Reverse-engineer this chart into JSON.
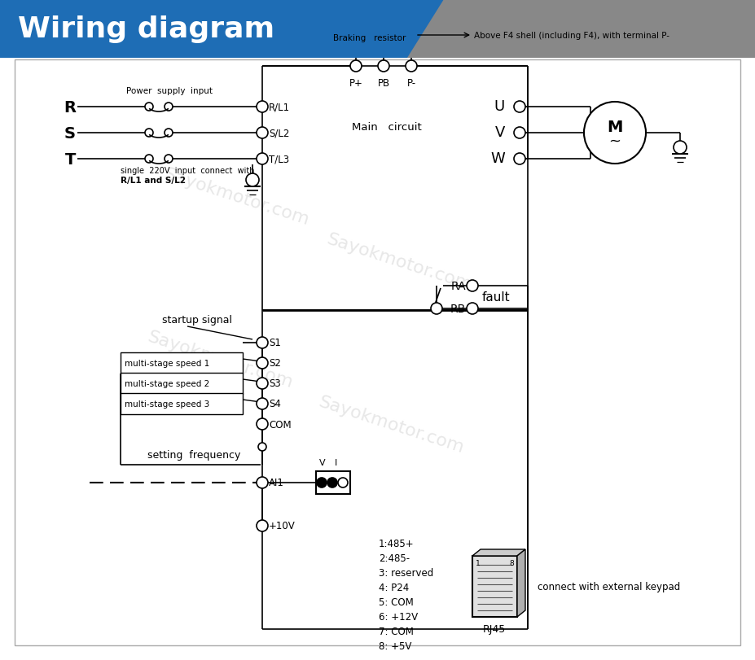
{
  "title": "Wiring diagram",
  "title_bg_color": "#1e6db5",
  "title_text_color": "#ffffff",
  "bg_color": "#ffffff",
  "gray_color": "#888888",
  "watermark": "Sayokmotor.com",
  "watermark_color": "#d0d0d0",
  "labels": {
    "R": "R",
    "S": "S",
    "T": "T",
    "RL1": "R/L1",
    "SL2": "S/L2",
    "TL3": "T/L3",
    "Pplus": "P+",
    "PB": "PB",
    "Pminus": "P-",
    "U": "U",
    "V": "V",
    "W": "W",
    "S1": "S1",
    "S2": "S2",
    "S3": "S3",
    "S4": "S4",
    "COM": "COM",
    "AI1": "AI1",
    "plus10V": "+10V",
    "RA": "RA",
    "RB": "RB",
    "fault": "fault",
    "main_circuit": "Main   circuit",
    "power_supply": "Power  supply  input",
    "single_220v": "single  220V  input  connect  with",
    "single_220v2": "R/L1 and S/L2",
    "braking": "Braking   resistor",
    "above_f4": "Above F4 shell (including F4), with terminal P-",
    "startup": "startup signal",
    "multi1": "multi-stage speed 1",
    "multi2": "multi-stage speed 2",
    "multi3": "multi-stage speed 3",
    "setting_freq": "setting  frequency",
    "rj45_list": [
      "1:485+",
      "2:485-",
      "3: reserved",
      "4: P24",
      "5: COM",
      "6: +12V",
      "7: COM",
      "8: +5V"
    ],
    "rj45": "RJ45",
    "connect_ext": "connect with external keypad",
    "V_label": "V",
    "I_label": "I",
    "M_label": "M",
    "tilde": "~"
  }
}
